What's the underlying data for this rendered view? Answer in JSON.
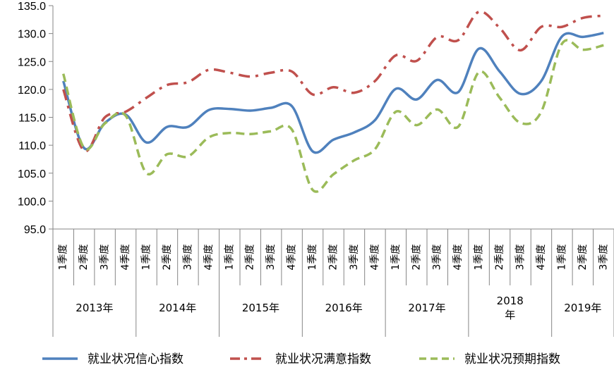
{
  "chart_data": {
    "type": "line",
    "ylim": [
      95.0,
      135.0
    ],
    "yticks": [
      "95.0",
      "100.0",
      "105.0",
      "110.0",
      "115.0",
      "120.0",
      "125.0",
      "130.0",
      "135.0"
    ],
    "grid": false,
    "legend_position": "bottom",
    "categories": [
      "1季度",
      "2季度",
      "3季度",
      "4季度",
      "1季度",
      "2季度",
      "3季度",
      "4季度",
      "1季度",
      "2季度",
      "3季度",
      "4季度",
      "1季度",
      "2季度",
      "3季度",
      "4季度",
      "1季度",
      "2季度",
      "3季度",
      "4季度",
      "1季度",
      "2季度",
      "3季度",
      "4季度",
      "1季度",
      "2季度",
      "3季度"
    ],
    "years": [
      {
        "label_lines": [
          "2013年"
        ],
        "start": 0,
        "span": 4
      },
      {
        "label_lines": [
          "2014年"
        ],
        "start": 4,
        "span": 4
      },
      {
        "label_lines": [
          "2015年"
        ],
        "start": 8,
        "span": 4
      },
      {
        "label_lines": [
          "2016年"
        ],
        "start": 12,
        "span": 4
      },
      {
        "label_lines": [
          "2017年"
        ],
        "start": 16,
        "span": 4
      },
      {
        "label_lines": [
          "2018",
          "年"
        ],
        "start": 20,
        "span": 4
      },
      {
        "label_lines": [
          "2019年"
        ],
        "start": 24,
        "span": 3
      }
    ],
    "series": [
      {
        "name": "就业状况信心指数",
        "color": "#4F81BD",
        "dash": "solid",
        "values": [
          121.5,
          109.5,
          114.0,
          115.5,
          110.5,
          113.3,
          113.3,
          116.3,
          116.5,
          116.2,
          116.7,
          117.0,
          108.9,
          111.0,
          112.3,
          114.5,
          120.1,
          118.2,
          121.7,
          119.5,
          127.3,
          123.2,
          119.2,
          121.5,
          129.5,
          129.4,
          130.1
        ]
      },
      {
        "name": "就业状况满意指数",
        "color": "#C0504D",
        "dash": "dashdot",
        "values": [
          120.0,
          109.0,
          115.0,
          116.0,
          118.5,
          120.8,
          121.3,
          123.5,
          123.0,
          122.3,
          123.0,
          123.2,
          119.1,
          120.4,
          119.4,
          121.5,
          126.1,
          125.1,
          129.4,
          128.8,
          133.9,
          131.0,
          127.0,
          131.2,
          131.2,
          132.8,
          133.2
        ]
      },
      {
        "name": "就业状况预期指数",
        "color": "#9BBB59",
        "dash": "dash",
        "values": [
          122.8,
          109.5,
          113.9,
          115.3,
          105.0,
          108.4,
          108.0,
          111.4,
          112.2,
          112.0,
          112.5,
          112.8,
          102.0,
          104.8,
          107.3,
          109.3,
          116.0,
          113.6,
          116.4,
          113.3,
          123.1,
          118.5,
          114.0,
          116.0,
          128.2,
          127.1,
          127.9
        ]
      }
    ]
  }
}
